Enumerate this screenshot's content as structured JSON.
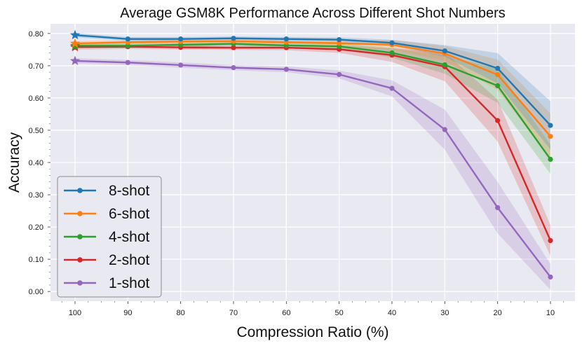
{
  "chart_data": {
    "type": "line",
    "title": "Average GSM8K Performance Across Different Shot Numbers",
    "xlabel": "Compression Ratio (%)",
    "ylabel": "Accuracy",
    "x": [
      100,
      90,
      80,
      70,
      60,
      50,
      40,
      30,
      20,
      10
    ],
    "x_tick_labels": [
      "100",
      "90",
      "80",
      "70",
      "60",
      "50",
      "40",
      "30",
      "20",
      "10"
    ],
    "x_direction": "descending",
    "ylim": [
      -0.03,
      0.83
    ],
    "y_ticks": [
      0.0,
      0.1,
      0.2,
      0.3,
      0.4,
      0.5,
      0.6,
      0.7,
      0.8
    ],
    "y_tick_labels": [
      "0.00",
      "0.10",
      "0.20",
      "0.30",
      "0.40",
      "0.50",
      "0.60",
      "0.70",
      "0.80"
    ],
    "grid": true,
    "legend_position": "lower-left",
    "note": "First point of each series drawn as a star marker; shaded bands show variability",
    "series": [
      {
        "name": "8-shot",
        "color": "#1f77b4",
        "values": [
          0.795,
          0.783,
          0.783,
          0.785,
          0.783,
          0.781,
          0.771,
          0.746,
          0.692,
          0.515
        ],
        "lower": [
          0.788,
          0.777,
          0.777,
          0.779,
          0.777,
          0.774,
          0.762,
          0.728,
          0.645,
          0.44
        ],
        "upper": [
          0.802,
          0.789,
          0.789,
          0.791,
          0.789,
          0.788,
          0.78,
          0.764,
          0.739,
          0.59
        ]
      },
      {
        "name": "6-shot",
        "color": "#ff7f0e",
        "values": [
          0.769,
          0.773,
          0.775,
          0.776,
          0.773,
          0.77,
          0.765,
          0.738,
          0.672,
          0.481
        ],
        "lower": [
          0.762,
          0.766,
          0.768,
          0.769,
          0.765,
          0.76,
          0.75,
          0.715,
          0.625,
          0.41
        ],
        "upper": [
          0.776,
          0.78,
          0.782,
          0.783,
          0.781,
          0.78,
          0.78,
          0.761,
          0.719,
          0.552
        ]
      },
      {
        "name": "4-shot",
        "color": "#2ca02c",
        "values": [
          0.762,
          0.762,
          0.765,
          0.768,
          0.763,
          0.76,
          0.74,
          0.703,
          0.638,
          0.41
        ],
        "lower": [
          0.755,
          0.755,
          0.758,
          0.761,
          0.755,
          0.75,
          0.725,
          0.675,
          0.585,
          0.365
        ],
        "upper": [
          0.769,
          0.769,
          0.772,
          0.775,
          0.771,
          0.77,
          0.755,
          0.731,
          0.691,
          0.455
        ]
      },
      {
        "name": "2-shot",
        "color": "#d62728",
        "values": [
          0.758,
          0.759,
          0.757,
          0.756,
          0.756,
          0.751,
          0.733,
          0.697,
          0.53,
          0.158
        ],
        "lower": [
          0.75,
          0.752,
          0.75,
          0.749,
          0.748,
          0.74,
          0.712,
          0.652,
          0.465,
          0.11
        ],
        "upper": [
          0.766,
          0.766,
          0.764,
          0.763,
          0.764,
          0.762,
          0.754,
          0.742,
          0.595,
          0.206
        ]
      },
      {
        "name": "1-shot",
        "color": "#9467bd",
        "values": [
          0.715,
          0.71,
          0.702,
          0.694,
          0.689,
          0.673,
          0.63,
          0.502,
          0.26,
          0.045
        ],
        "lower": [
          0.707,
          0.702,
          0.694,
          0.686,
          0.68,
          0.661,
          0.605,
          0.44,
          0.18,
          0.005
        ],
        "upper": [
          0.723,
          0.718,
          0.71,
          0.702,
          0.698,
          0.685,
          0.655,
          0.564,
          0.34,
          0.085
        ]
      }
    ]
  }
}
